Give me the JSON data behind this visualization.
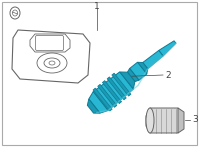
{
  "bg_color": "#ffffff",
  "border_color": "#aaaaaa",
  "stem_color": "#29b8d4",
  "stem_color_dark": "#1a9ab5",
  "stem_color_darker": "#0f7a94",
  "stem_color_light": "#5ecfe0",
  "line_color": "#444444",
  "outline_color": "#666666",
  "part1_label": "1",
  "part2_label": "2",
  "part3_label": "3",
  "sensor_fill": "#ffffff",
  "cap_fill": "#d0d0d0"
}
